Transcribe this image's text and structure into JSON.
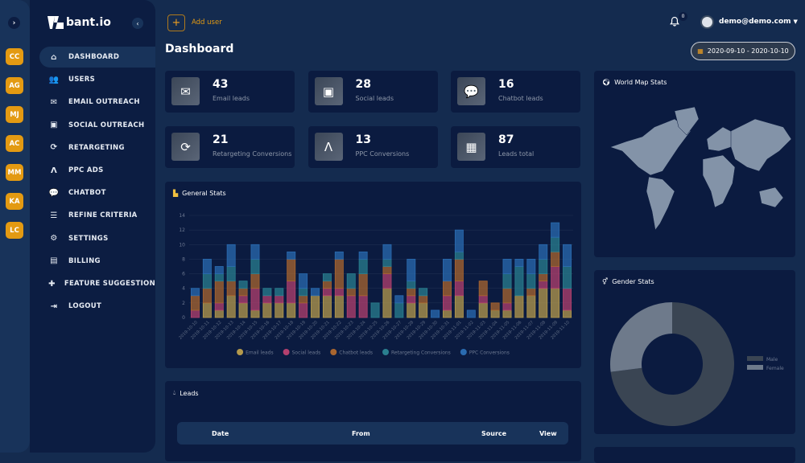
{
  "user_strip": {
    "initials": [
      "CC",
      "AG",
      "MJ",
      "AC",
      "MM",
      "KA",
      "LC"
    ],
    "accent": "#e39a12"
  },
  "brand": "bant.io",
  "sidebar": {
    "items": [
      {
        "label": "DASHBOARD",
        "icon": "home-icon",
        "glyph": "⌂",
        "active": true
      },
      {
        "label": "USERS",
        "icon": "users-icon",
        "glyph": "👥"
      },
      {
        "label": "EMAIL OUTREACH",
        "icon": "envelope-icon",
        "glyph": "✉"
      },
      {
        "label": "SOCIAL OUTREACH",
        "icon": "id-card-icon",
        "glyph": "▣"
      },
      {
        "label": "RETARGETING",
        "icon": "sync-icon",
        "glyph": "⟳"
      },
      {
        "label": "PPC ADS",
        "icon": "ads-icon",
        "glyph": "Λ"
      },
      {
        "label": "CHATBOT",
        "icon": "comments-icon",
        "glyph": "💬"
      },
      {
        "label": "REFINE CRITERIA",
        "icon": "sliders-icon",
        "glyph": "☰"
      },
      {
        "label": "SETTINGS",
        "icon": "cogs-icon",
        "glyph": "⚙"
      },
      {
        "label": "BILLING",
        "icon": "card-icon",
        "glyph": "▤"
      },
      {
        "label": "FEATURE SUGGESTION",
        "icon": "puzzle-icon",
        "glyph": "✚"
      },
      {
        "label": "LOGOUT",
        "icon": "sign-out-icon",
        "glyph": "⇥"
      }
    ]
  },
  "header": {
    "add_user": "Add user",
    "page_title": "Dashboard",
    "notifications": "0",
    "user": "demo@demo.com",
    "date_range": "2020-09-10 - 2020-10-10"
  },
  "stats": [
    {
      "value": "43",
      "label": "Email leads",
      "icon": "envelope-icon",
      "glyph": "✉"
    },
    {
      "value": "28",
      "label": "Social leads",
      "icon": "id-card-icon",
      "glyph": "▣"
    },
    {
      "value": "16",
      "label": "Chatbot leads",
      "icon": "comment-icon",
      "glyph": "💬"
    },
    {
      "value": "21",
      "label": "Retargeting Conversions",
      "icon": "sync-icon",
      "glyph": "⟳"
    },
    {
      "value": "13",
      "label": "PPC Conversions",
      "icon": "ads-icon",
      "glyph": "Λ"
    },
    {
      "value": "87",
      "label": "Leads total",
      "icon": "calculator-icon",
      "glyph": "▦"
    }
  ],
  "general_stats": {
    "title": "General Stats"
  },
  "chart_data": [
    {
      "type": "bar",
      "stacked": true,
      "ylim": [
        0,
        14
      ],
      "yticks": [
        0,
        2,
        4,
        6,
        8,
        10,
        12,
        14
      ],
      "grid": true,
      "legend": "bottom",
      "categories": [
        "2019-10-10",
        "2019-10-11",
        "2019-10-12",
        "2019-10-13",
        "2019-10-14",
        "2019-10-15",
        "2019-10-16",
        "2019-10-17",
        "2019-10-18",
        "2019-10-19",
        "2019-10-20",
        "2019-10-21",
        "2019-10-22",
        "2019-10-23",
        "2019-10-24",
        "2019-10-25",
        "2019-10-26",
        "2019-10-27",
        "2019-10-28",
        "2019-10-29",
        "2019-10-30",
        "2019-10-31",
        "2019-11-01",
        "2019-11-02",
        "2019-11-03",
        "2019-11-04",
        "2019-11-05",
        "2019-11-06",
        "2019-11-07",
        "2019-11-08",
        "2019-11-09",
        "2019-11-10"
      ],
      "series": [
        {
          "name": "Email leads",
          "color": "#b59a4c",
          "values": [
            0,
            2,
            1,
            3,
            2,
            1,
            2,
            2,
            2,
            0,
            3,
            3,
            3,
            0,
            0,
            0,
            4,
            0,
            2,
            2,
            0,
            1,
            3,
            0,
            2,
            1,
            1,
            3,
            3,
            4,
            4,
            1
          ]
        },
        {
          "name": "Social leads",
          "color": "#b3406e",
          "values": [
            1,
            0,
            1,
            0,
            1,
            3,
            1,
            1,
            3,
            2,
            0,
            1,
            1,
            3,
            3,
            0,
            2,
            0,
            1,
            0,
            0,
            2,
            2,
            0,
            1,
            0,
            1,
            0,
            0,
            1,
            3,
            3
          ]
        },
        {
          "name": "Chatbot leads",
          "color": "#a9652f",
          "values": [
            2,
            2,
            3,
            2,
            1,
            2,
            0,
            0,
            3,
            1,
            0,
            1,
            4,
            1,
            3,
            0,
            1,
            0,
            1,
            1,
            0,
            2,
            3,
            0,
            2,
            1,
            2,
            0,
            1,
            1,
            2,
            0
          ]
        },
        {
          "name": "Retargeting Conversions",
          "color": "#2a7f8f",
          "values": [
            0,
            2,
            1,
            2,
            1,
            2,
            1,
            1,
            0,
            1,
            0,
            1,
            0,
            2,
            2,
            2,
            1,
            2,
            1,
            1,
            0,
            0,
            1,
            0,
            0,
            0,
            2,
            4,
            2,
            2,
            2,
            3
          ]
        },
        {
          "name": "PPC Conversions",
          "color": "#2a6bb0",
          "values": [
            1,
            2,
            1,
            3,
            0,
            2,
            0,
            0,
            1,
            2,
            1,
            0,
            1,
            0,
            1,
            0,
            2,
            1,
            3,
            0,
            1,
            3,
            3,
            1,
            0,
            0,
            2,
            1,
            2,
            2,
            2,
            3
          ]
        }
      ]
    },
    {
      "type": "pie",
      "donut": true,
      "title": "Gender Stats",
      "legend": "right",
      "categories": [
        "Male",
        "Female"
      ],
      "values": [
        73,
        27
      ],
      "colors": [
        "#3a4553",
        "#6e7a8b"
      ]
    }
  ],
  "world_map": {
    "title": "World Map Stats"
  },
  "leads": {
    "title": "Leads",
    "columns": [
      "Date",
      "From",
      "Source",
      "View"
    ]
  }
}
